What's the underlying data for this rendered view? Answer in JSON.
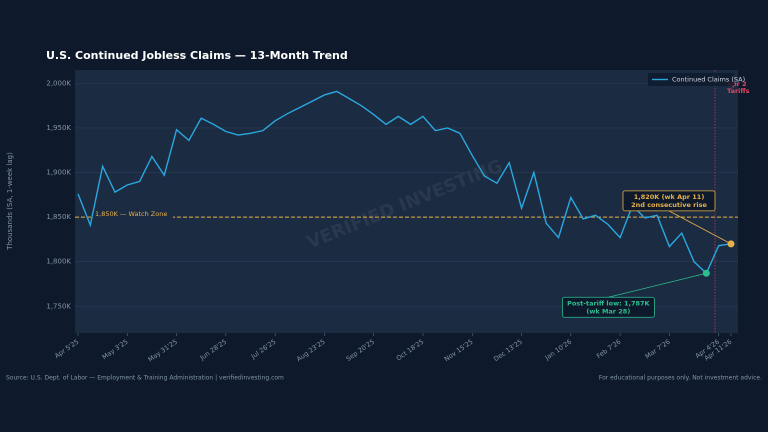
{
  "chart_data": {
    "type": "line",
    "title": "U.S. Continued Jobless Claims — 13-Month Trend",
    "y_label": "Thousands (SA, 1-week lag)",
    "categories": [
      "Apr 5'25",
      null,
      null,
      null,
      "May 3'25",
      null,
      null,
      null,
      "May 31'25",
      null,
      null,
      null,
      "Jun 28'25",
      null,
      null,
      null,
      "Jul 26'25",
      null,
      null,
      null,
      "Aug 23'25",
      null,
      null,
      null,
      "Sep 20'25",
      null,
      null,
      null,
      "Oct 18'25",
      null,
      null,
      null,
      "Nov 15'25",
      null,
      null,
      null,
      "Dec 13'25",
      null,
      null,
      null,
      "Jan 10'26",
      null,
      null,
      null,
      "Feb 7'26",
      null,
      null,
      null,
      "Mar 7'26",
      null,
      null,
      null,
      "Apr 4'26",
      "Apr 11'26"
    ],
    "series": [
      {
        "name": "Continued Claims (SA)",
        "color": "#2aa8e0",
        "values": [
          1876,
          1841,
          1907,
          1878,
          1886,
          1890,
          1918,
          1897,
          1948,
          1936,
          1961,
          1954,
          1946,
          1942,
          1944,
          1947,
          1958,
          1966,
          1973,
          1980,
          1987,
          1991,
          1983,
          1975,
          1965,
          1954,
          1963,
          1954,
          1963,
          1947,
          1950,
          1944,
          1919,
          1896,
          1888,
          1911,
          1860,
          1900,
          1843,
          1827,
          1872,
          1848,
          1852,
          1842,
          1827,
          1863,
          1849,
          1852,
          1817,
          1832,
          1800,
          1787,
          1818,
          1820
        ]
      }
    ],
    "ylim": [
      1720,
      2015
    ],
    "yticks": [
      {
        "value": 1750,
        "label": "1,750K"
      },
      {
        "value": 1800,
        "label": "1,800K"
      },
      {
        "value": 1850,
        "label": "1,850K"
      },
      {
        "value": 1900,
        "label": "1,900K"
      },
      {
        "value": 1950,
        "label": "1,950K"
      },
      {
        "value": 2000,
        "label": "2,000K"
      }
    ],
    "grid": true,
    "legend": "upper right",
    "hline": {
      "value": 1850,
      "label": "1,850K — Watch Zone",
      "color": "#e8b04a"
    },
    "vline": {
      "x": 51.7,
      "label": [
        "Apr 2",
        "Tariffs"
      ],
      "color": "#c0396b"
    },
    "annotations": [
      {
        "index": 53,
        "lines": [
          "1,820K  (wk Apr 11)",
          "2nd consecutive rise"
        ],
        "color": "#e8b04a"
      },
      {
        "index": 51,
        "lines": [
          "Post-tariff low: 1,787K",
          "(wk Mar 28)"
        ],
        "color": "#2bbf8f"
      }
    ],
    "watermark": "VERIFIED INVESTING",
    "source": "Source: U.S. Dept. of Labor — Employment & Training Administration | verifiedinvesting.com",
    "disclaimer": "For educational purposes only. Not investment advice."
  }
}
